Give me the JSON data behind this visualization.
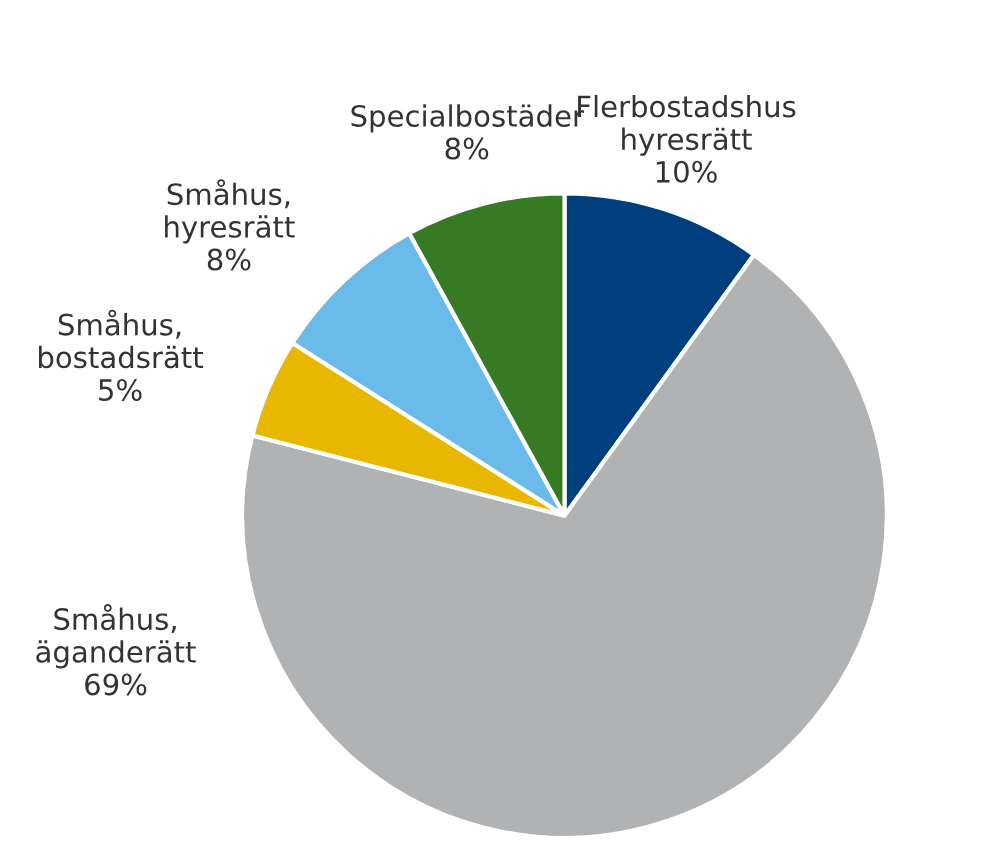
{
  "chart_data": {
    "type": "pie",
    "categories": [
      "Flerbostadshus\nhyresrätt",
      "Småhus,\näganderätt",
      "Småhus,\nbostadsrätt",
      "Småhus,\nhyresrätt",
      "Specialbostäder"
    ],
    "values": [
      10,
      69,
      5,
      8,
      8
    ],
    "value_labels": [
      "10%",
      "69%",
      "5%",
      "8%",
      "8%"
    ],
    "colors": [
      "#003f7d",
      "#b1b2b4",
      "#e8b800",
      "#6bbbea",
      "#367a24"
    ]
  }
}
